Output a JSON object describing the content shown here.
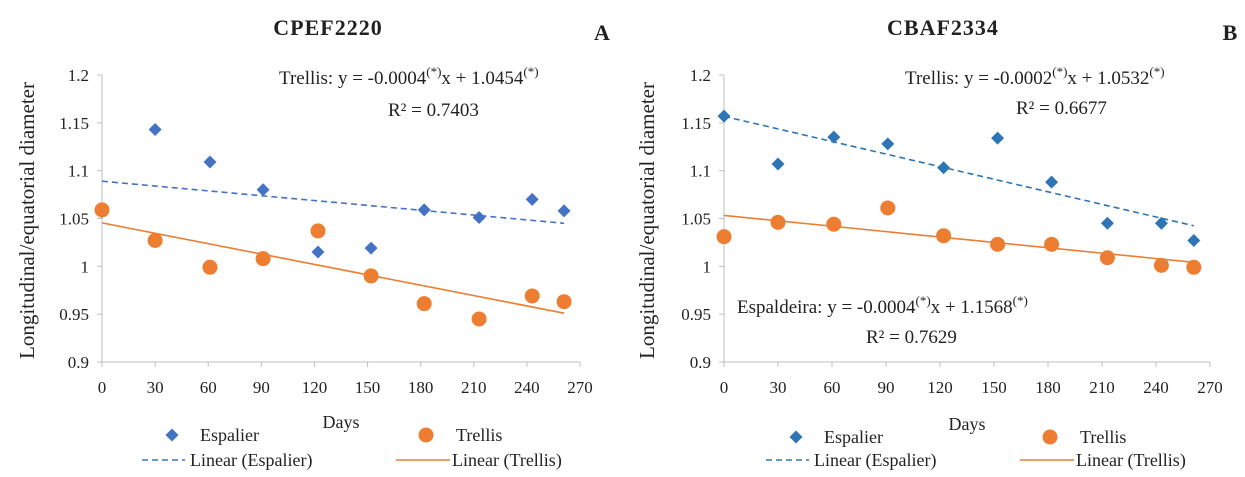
{
  "colors": {
    "espalier": "#4472c4",
    "espalier_b": "#2e75b6",
    "trellis": "#ed7d31",
    "axis": "#bfbfbf",
    "text": "#222222"
  },
  "chart_data": [
    {
      "type": "scatter",
      "title": "CPEF2220",
      "panel_letter": "A",
      "xlabel": "Days",
      "ylabel": "Longitudinal/equatorial diameter",
      "xlim": [
        0,
        270
      ],
      "ylim": [
        0.9,
        1.2
      ],
      "xticks": [
        0,
        30,
        60,
        90,
        120,
        150,
        180,
        210,
        240,
        270
      ],
      "yticks": [
        0.9,
        0.95,
        1,
        1.05,
        1.1,
        1.15,
        1.2
      ],
      "ytick_labels": [
        "0.9",
        "0.95",
        "1",
        "1.05",
        "1.1",
        "1.15",
        "1.2"
      ],
      "series": [
        {
          "name": "Espalier",
          "marker": "diamond",
          "x": [
            0,
            30,
            61,
            91,
            122,
            152,
            182,
            213,
            243,
            261
          ],
          "y": [
            1.057,
            1.143,
            1.109,
            1.08,
            1.015,
            1.019,
            1.059,
            1.051,
            1.07,
            1.058
          ]
        },
        {
          "name": "Trellis",
          "marker": "circle",
          "x": [
            0,
            30,
            61,
            91,
            122,
            152,
            182,
            213,
            243,
            261
          ],
          "y": [
            1.059,
            1.027,
            0.999,
            1.008,
            1.037,
            0.99,
            0.961,
            0.945,
            0.969,
            0.963
          ]
        }
      ],
      "trendlines": [
        {
          "name": "Linear (Espalier)",
          "style": "dashed",
          "x": [
            0,
            261
          ],
          "y": [
            1.089,
            1.045
          ]
        },
        {
          "name": "Linear (Trellis)",
          "style": "solid",
          "x": [
            0,
            261
          ],
          "y": [
            1.0454,
            0.951
          ]
        }
      ],
      "annotations": [
        {
          "pre": "Trellis:  y = -0.0004",
          "sup1": "(*)",
          "mid": "x + 1.0454",
          "sup2": "(*)"
        },
        {
          "pre": "R² = 0.7403",
          "sup1": "",
          "mid": "",
          "sup2": ""
        }
      ]
    },
    {
      "type": "scatter",
      "title": "CBAF2334",
      "panel_letter": "B",
      "xlabel": "Days",
      "ylabel": "Longitudinal/equatorial diameter",
      "xlim": [
        0,
        270
      ],
      "ylim": [
        0.9,
        1.2
      ],
      "xticks": [
        0,
        30,
        60,
        90,
        120,
        150,
        180,
        210,
        240,
        270
      ],
      "yticks": [
        0.9,
        0.95,
        1,
        1.05,
        1.1,
        1.15,
        1.2
      ],
      "ytick_labels": [
        "0.9",
        "0.95",
        "1",
        "1.05",
        "1.1",
        "1.15",
        "1.2"
      ],
      "series": [
        {
          "name": "Espalier",
          "marker": "diamond",
          "x": [
            0,
            30,
            61,
            91,
            122,
            152,
            182,
            213,
            243,
            261
          ],
          "y": [
            1.157,
            1.107,
            1.135,
            1.128,
            1.103,
            1.134,
            1.088,
            1.045,
            1.045,
            1.027
          ]
        },
        {
          "name": "Trellis",
          "marker": "circle",
          "x": [
            0,
            30,
            61,
            91,
            122,
            152,
            182,
            213,
            243,
            261
          ],
          "y": [
            1.031,
            1.046,
            1.044,
            1.061,
            1.032,
            1.023,
            1.023,
            1.009,
            1.001,
            0.999
          ]
        }
      ],
      "trendlines": [
        {
          "name": "Linear (Espalier)",
          "style": "dashed",
          "x": [
            0,
            261
          ],
          "y": [
            1.1568,
            1.0424
          ]
        },
        {
          "name": "Linear (Trellis)",
          "style": "solid",
          "x": [
            0,
            261
          ],
          "y": [
            1.0532,
            1.0042
          ]
        }
      ],
      "annotations": [
        {
          "pre": "Trellis:  y = -0.0002",
          "sup1": "(*)",
          "mid": "x + 1.0532",
          "sup2": "(*)"
        },
        {
          "pre": "R² = 0.6677",
          "sup1": "",
          "mid": "",
          "sup2": ""
        },
        {
          "pre": "Espaldeira:  y = -0.0004",
          "sup1": "(*)",
          "mid": "x + 1.1568",
          "sup2": "(*)"
        },
        {
          "pre": "R² = 0.7629",
          "sup1": "",
          "mid": "",
          "sup2": ""
        }
      ]
    }
  ]
}
